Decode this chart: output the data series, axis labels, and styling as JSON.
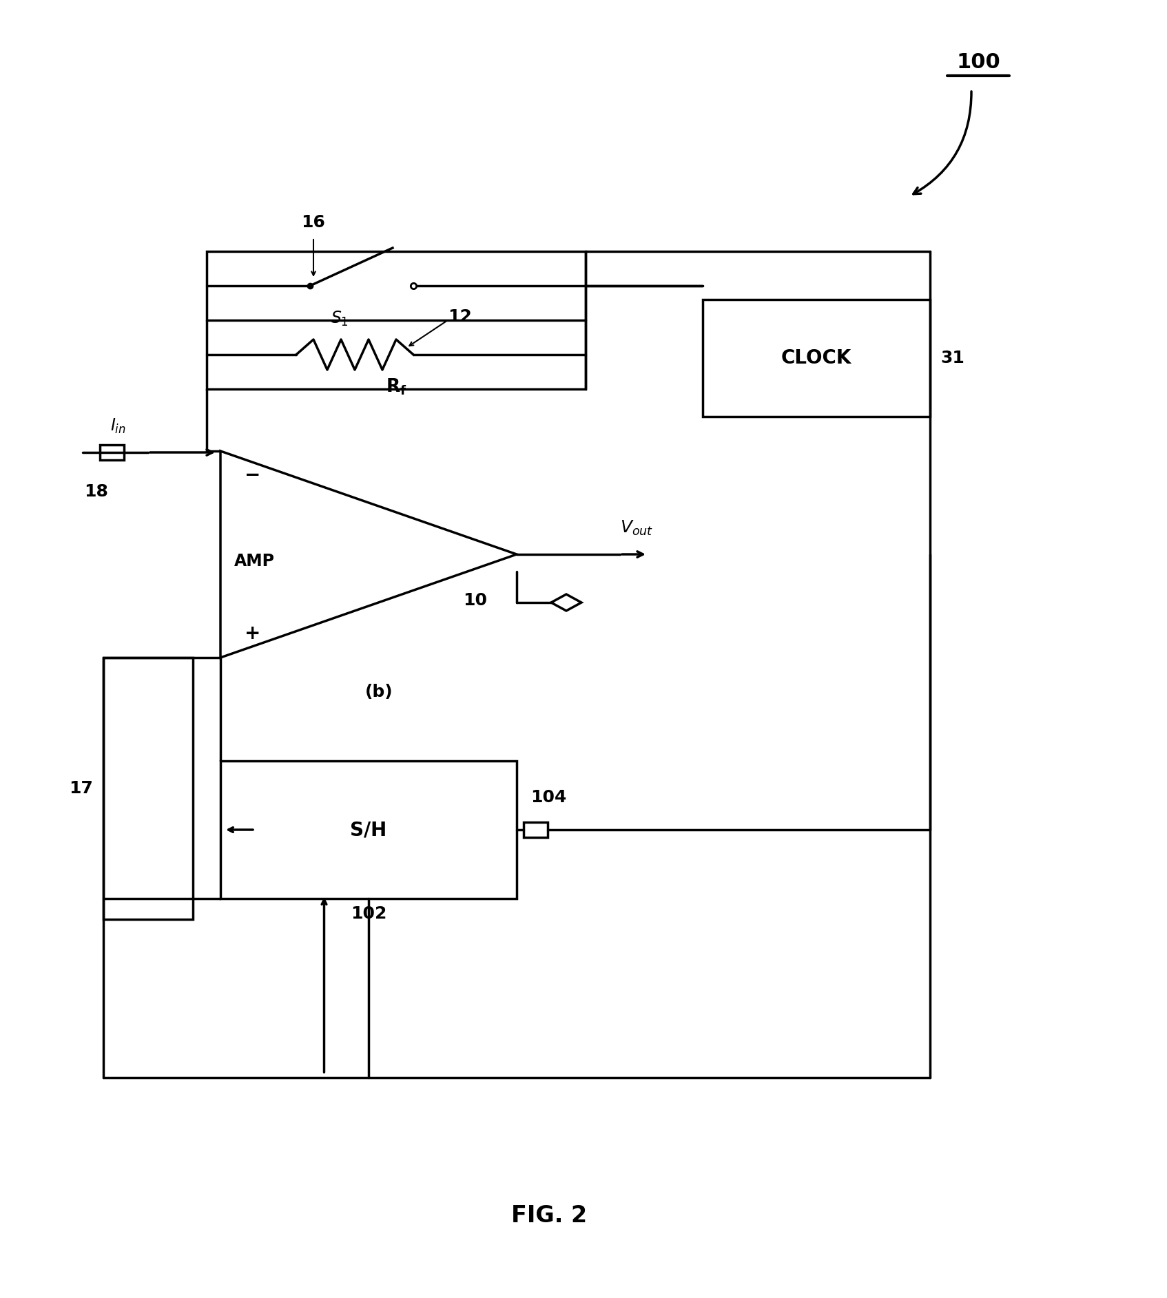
{
  "bg_color": "#ffffff",
  "line_color": "#000000",
  "line_width": 2.5,
  "fig_width": 16.94,
  "fig_height": 18.85,
  "title": "FIG. 2",
  "label_100": "100",
  "label_31": "31",
  "label_16": "16",
  "label_12": "12",
  "label_s1": "S",
  "label_rf": "R",
  "label_10": "10",
  "label_amp": "AMP",
  "label_17": "17",
  "label_18": "18",
  "label_iin": "I",
  "label_vout": "V",
  "label_clock": "CLOCK",
  "label_sh": "S/H",
  "label_102": "102",
  "label_104": "104",
  "label_b": "(b)"
}
